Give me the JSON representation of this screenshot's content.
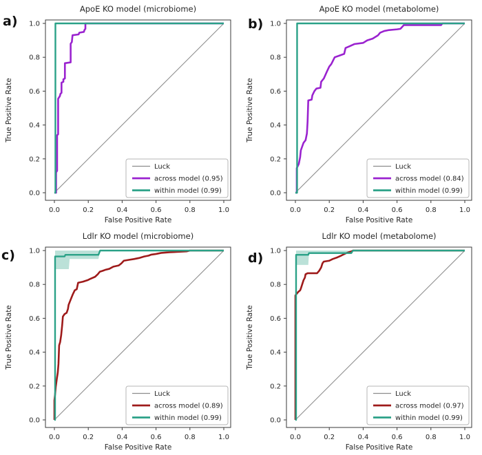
{
  "chart_data": [
    {
      "type": "line",
      "panel_label": "a)",
      "title": "ApoE KO model (microbiome)",
      "xlabel": "False Positive Rate",
      "ylabel": "True Positive Rate",
      "xlim": [
        0,
        1
      ],
      "ylim": [
        0,
        1
      ],
      "grid": false,
      "legend_position": "lower right",
      "xticks": [
        0,
        0.2,
        0.4,
        0.6,
        0.8,
        1.0
      ],
      "yticks": [
        0,
        0.2,
        0.4,
        0.6,
        0.8,
        1.0
      ],
      "xtick_labels": [
        "0.0",
        "0.2",
        "0.4",
        "0.6",
        "0.8",
        "1.0"
      ],
      "ytick_labels": [
        "0.0",
        "0.2",
        "0.4",
        "0.6",
        "0.8",
        "1.0"
      ],
      "series": [
        {
          "name": "Luck",
          "color": "#8c8c8c",
          "width": 1.1,
          "points": [
            [
              0,
              0
            ],
            [
              1,
              1
            ]
          ]
        },
        {
          "name": "across model (0.95)",
          "color": "#9a22cf",
          "width": 2.6,
          "points": [
            [
              0,
              0
            ],
            [
              0.01,
              0
            ],
            [
              0.01,
              0.12
            ],
            [
              0.016,
              0.13
            ],
            [
              0.016,
              0.34
            ],
            [
              0.022,
              0.345
            ],
            [
              0.022,
              0.555
            ],
            [
              0.032,
              0.57
            ],
            [
              0.036,
              0.585
            ],
            [
              0.042,
              0.59
            ],
            [
              0.042,
              0.65
            ],
            [
              0.053,
              0.655
            ],
            [
              0.053,
              0.67
            ],
            [
              0.062,
              0.675
            ],
            [
              0.062,
              0.765
            ],
            [
              0.096,
              0.77
            ],
            [
              0.096,
              0.88
            ],
            [
              0.103,
              0.89
            ],
            [
              0.107,
              0.93
            ],
            [
              0.143,
              0.935
            ],
            [
              0.147,
              0.945
            ],
            [
              0.174,
              0.95
            ],
            [
              0.178,
              0.962
            ],
            [
              0.183,
              0.968
            ],
            [
              0.183,
              1
            ],
            [
              1,
              1
            ]
          ]
        },
        {
          "name": "within model (0.99)",
          "color": "#2aa187",
          "width": 2.4,
          "points": [
            [
              0,
              0
            ],
            [
              0.006,
              0
            ],
            [
              0.006,
              1
            ],
            [
              1,
              1
            ]
          ]
        }
      ]
    },
    {
      "type": "line",
      "panel_label": "b)",
      "title": "ApoE KO model (metabolome)",
      "xlabel": "False Positive Rate",
      "ylabel": "True Positive Rate",
      "xlim": [
        0,
        1
      ],
      "ylim": [
        0,
        1
      ],
      "grid": false,
      "legend_position": "lower right",
      "xticks": [
        0,
        0.2,
        0.4,
        0.6,
        0.8,
        1.0
      ],
      "yticks": [
        0,
        0.2,
        0.4,
        0.6,
        0.8,
        1.0
      ],
      "xtick_labels": [
        "0.0",
        "0.2",
        "0.4",
        "0.6",
        "0.8",
        "1.0"
      ],
      "ytick_labels": [
        "0.0",
        "0.2",
        "0.4",
        "0.6",
        "0.8",
        "1.0"
      ],
      "series": [
        {
          "name": "Luck",
          "color": "#8c8c8c",
          "width": 1.1,
          "points": [
            [
              0,
              0
            ],
            [
              1,
              1
            ]
          ]
        },
        {
          "name": "across model (0.84)",
          "color": "#9a22cf",
          "width": 2.6,
          "points": [
            [
              0,
              0
            ],
            [
              0.008,
              0
            ],
            [
              0.008,
              0.145
            ],
            [
              0.02,
              0.17
            ],
            [
              0.028,
              0.21
            ],
            [
              0.032,
              0.25
            ],
            [
              0.048,
              0.295
            ],
            [
              0.06,
              0.31
            ],
            [
              0.068,
              0.35
            ],
            [
              0.072,
              0.42
            ],
            [
              0.076,
              0.545
            ],
            [
              0.096,
              0.55
            ],
            [
              0.1,
              0.575
            ],
            [
              0.112,
              0.6
            ],
            [
              0.124,
              0.615
            ],
            [
              0.148,
              0.62
            ],
            [
              0.152,
              0.655
            ],
            [
              0.168,
              0.675
            ],
            [
              0.188,
              0.72
            ],
            [
              0.2,
              0.745
            ],
            [
              0.212,
              0.76
            ],
            [
              0.232,
              0.8
            ],
            [
              0.26,
              0.81
            ],
            [
              0.288,
              0.82
            ],
            [
              0.296,
              0.855
            ],
            [
              0.32,
              0.865
            ],
            [
              0.348,
              0.878
            ],
            [
              0.4,
              0.885
            ],
            [
              0.424,
              0.9
            ],
            [
              0.456,
              0.91
            ],
            [
              0.488,
              0.93
            ],
            [
              0.5,
              0.945
            ],
            [
              0.524,
              0.955
            ],
            [
              0.548,
              0.96
            ],
            [
              0.6,
              0.965
            ],
            [
              0.62,
              0.968
            ],
            [
              0.64,
              0.99
            ],
            [
              0.86,
              0.99
            ],
            [
              0.868,
              1
            ],
            [
              1,
              1
            ]
          ]
        },
        {
          "name": "within model (0.99)",
          "color": "#2aa187",
          "width": 2.4,
          "points": [
            [
              0,
              0
            ],
            [
              0.01,
              0
            ],
            [
              0.01,
              1
            ],
            [
              1,
              1
            ]
          ]
        }
      ]
    },
    {
      "type": "line",
      "panel_label": "c)",
      "title": "Ldlr KO model (microbiome)",
      "xlabel": "False Positive Rate",
      "ylabel": "True Positive Rate",
      "xlim": [
        0,
        1
      ],
      "ylim": [
        0,
        1
      ],
      "grid": false,
      "legend_position": "lower right",
      "xticks": [
        0,
        0.2,
        0.4,
        0.6,
        0.8,
        1.0
      ],
      "yticks": [
        0,
        0.2,
        0.4,
        0.6,
        0.8,
        1.0
      ],
      "xtick_labels": [
        "0.0",
        "0.2",
        "0.4",
        "0.6",
        "0.8",
        "1.0"
      ],
      "ytick_labels": [
        "0.0",
        "0.2",
        "0.4",
        "0.6",
        "0.8",
        "1.0"
      ],
      "series": [
        {
          "name": "Luck",
          "color": "#8c8c8c",
          "width": 1.1,
          "points": [
            [
              0,
              0
            ],
            [
              1,
              1
            ]
          ]
        },
        {
          "name": "across model (0.89)",
          "color": "#9e1a1a",
          "width": 2.6,
          "points": [
            [
              0,
              0
            ],
            [
              0,
              0.115
            ],
            [
              0.004,
              0.15
            ],
            [
              0.008,
              0.195
            ],
            [
              0.014,
              0.24
            ],
            [
              0.02,
              0.28
            ],
            [
              0.024,
              0.33
            ],
            [
              0.028,
              0.44
            ],
            [
              0.034,
              0.46
            ],
            [
              0.04,
              0.5
            ],
            [
              0.046,
              0.56
            ],
            [
              0.05,
              0.61
            ],
            [
              0.06,
              0.625
            ],
            [
              0.072,
              0.632
            ],
            [
              0.08,
              0.655
            ],
            [
              0.084,
              0.68
            ],
            [
              0.092,
              0.7
            ],
            [
              0.1,
              0.72
            ],
            [
              0.108,
              0.74
            ],
            [
              0.12,
              0.765
            ],
            [
              0.132,
              0.772
            ],
            [
              0.14,
              0.81
            ],
            [
              0.168,
              0.816
            ],
            [
              0.196,
              0.825
            ],
            [
              0.21,
              0.832
            ],
            [
              0.24,
              0.845
            ],
            [
              0.256,
              0.86
            ],
            [
              0.268,
              0.875
            ],
            [
              0.284,
              0.88
            ],
            [
              0.3,
              0.886
            ],
            [
              0.324,
              0.892
            ],
            [
              0.348,
              0.905
            ],
            [
              0.38,
              0.912
            ],
            [
              0.396,
              0.925
            ],
            [
              0.41,
              0.94
            ],
            [
              0.44,
              0.945
            ],
            [
              0.47,
              0.95
            ],
            [
              0.5,
              0.956
            ],
            [
              0.53,
              0.965
            ],
            [
              0.556,
              0.97
            ],
            [
              0.572,
              0.976
            ],
            [
              0.6,
              0.98
            ],
            [
              0.63,
              0.986
            ],
            [
              0.68,
              0.99
            ],
            [
              0.78,
              0.995
            ],
            [
              0.8,
              1
            ],
            [
              1,
              1
            ]
          ]
        },
        {
          "name": "within model (0.99)",
          "color": "#2aa187",
          "width": 2.4,
          "points": [
            [
              0,
              0
            ],
            [
              0.004,
              0
            ],
            [
              0.004,
              0.965
            ],
            [
              0.06,
              0.965
            ],
            [
              0.065,
              0.975
            ],
            [
              0.26,
              0.975
            ],
            [
              0.27,
              1
            ],
            [
              1,
              1
            ]
          ],
          "band": {
            "opacity": 0.32,
            "upper": [
              [
                0.004,
                1
              ],
              [
                0.27,
                1
              ]
            ],
            "lower": [
              [
                0.004,
                0.89
              ],
              [
                0.085,
                0.89
              ],
              [
                0.09,
                0.95
              ],
              [
                0.26,
                0.95
              ],
              [
                0.27,
                1
              ]
            ]
          }
        }
      ]
    },
    {
      "type": "line",
      "panel_label": "d)",
      "title": "Ldlr KO model (metabolome)",
      "xlabel": "False Positive Rate",
      "ylabel": "True Positive Rate",
      "xlim": [
        0,
        1
      ],
      "ylim": [
        0,
        1
      ],
      "grid": false,
      "legend_position": "lower right",
      "xticks": [
        0,
        0.2,
        0.4,
        0.6,
        0.8,
        1.0
      ],
      "yticks": [
        0,
        0.2,
        0.4,
        0.6,
        0.8,
        1.0
      ],
      "xtick_labels": [
        "0.0",
        "0.2",
        "0.4",
        "0.6",
        "0.8",
        "1.0"
      ],
      "ytick_labels": [
        "0.0",
        "0.2",
        "0.4",
        "0.6",
        "0.8",
        "1.0"
      ],
      "series": [
        {
          "name": "Luck",
          "color": "#8c8c8c",
          "width": 1.1,
          "points": [
            [
              0,
              0
            ],
            [
              1,
              1
            ]
          ]
        },
        {
          "name": "across model (0.97)",
          "color": "#9e1a1a",
          "width": 2.6,
          "points": [
            [
              0,
              0
            ],
            [
              0,
              0.735
            ],
            [
              0.008,
              0.745
            ],
            [
              0.016,
              0.755
            ],
            [
              0.028,
              0.765
            ],
            [
              0.032,
              0.775
            ],
            [
              0.04,
              0.8
            ],
            [
              0.048,
              0.825
            ],
            [
              0.056,
              0.84
            ],
            [
              0.06,
              0.86
            ],
            [
              0.072,
              0.866
            ],
            [
              0.128,
              0.866
            ],
            [
              0.14,
              0.88
            ],
            [
              0.152,
              0.9
            ],
            [
              0.16,
              0.925
            ],
            [
              0.168,
              0.935
            ],
            [
              0.2,
              0.94
            ],
            [
              0.22,
              0.95
            ],
            [
              0.248,
              0.96
            ],
            [
              0.27,
              0.97
            ],
            [
              0.3,
              0.985
            ],
            [
              0.33,
              0.995
            ],
            [
              0.34,
              1
            ],
            [
              1,
              1
            ]
          ]
        },
        {
          "name": "within model (0.99)",
          "color": "#2aa187",
          "width": 2.4,
          "points": [
            [
              0,
              0
            ],
            [
              0.004,
              0
            ],
            [
              0.004,
              0.975
            ],
            [
              0.076,
              0.975
            ],
            [
              0.08,
              0.985
            ],
            [
              0.33,
              0.985
            ],
            [
              0.34,
              1
            ],
            [
              1,
              1
            ]
          ],
          "band": {
            "opacity": 0.32,
            "upper": [
              [
                0.004,
                1
              ],
              [
                0.34,
                1
              ]
            ],
            "lower": [
              [
                0.004,
                0.915
              ],
              [
                0.076,
                0.915
              ],
              [
                0.08,
                0.98
              ],
              [
                0.33,
                0.98
              ],
              [
                0.34,
                1
              ]
            ]
          }
        }
      ]
    }
  ]
}
